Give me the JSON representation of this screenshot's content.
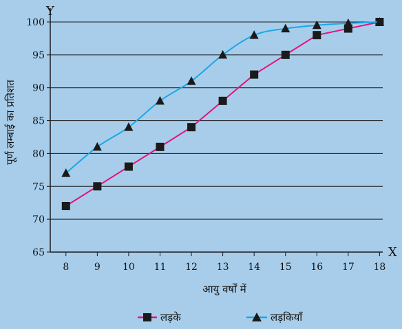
{
  "chart_data": {
    "type": "line",
    "title": "",
    "xlabel": "आयु वर्षों में",
    "ylabel": "पूर्ण लम्बाई का प्रतिशत",
    "x_axis_letter": "X",
    "y_axis_letter": "Y",
    "x": [
      8,
      9,
      10,
      11,
      12,
      13,
      14,
      15,
      16,
      17,
      18
    ],
    "xlim": [
      7.5,
      18.1
    ],
    "ylim": [
      65,
      100
    ],
    "yticks": [
      65,
      70,
      75,
      80,
      85,
      90,
      95,
      100
    ],
    "grid": "horizontal",
    "legend_position": "bottom",
    "series": [
      {
        "name": "लड़के",
        "marker": "square",
        "color": "#e0147f",
        "values": [
          72,
          75,
          78,
          81,
          84,
          88,
          92,
          95,
          98,
          99,
          100
        ]
      },
      {
        "name": "लड़कियाँ",
        "marker": "triangle",
        "color": "#1aa7e6",
        "values": [
          77,
          81,
          84,
          88,
          91,
          95,
          98,
          99,
          99.5,
          99.8,
          100
        ]
      }
    ]
  },
  "colors": {
    "background": "#a8cdea",
    "grid": "#1a1a1a",
    "marker": "#1a1a1a"
  }
}
